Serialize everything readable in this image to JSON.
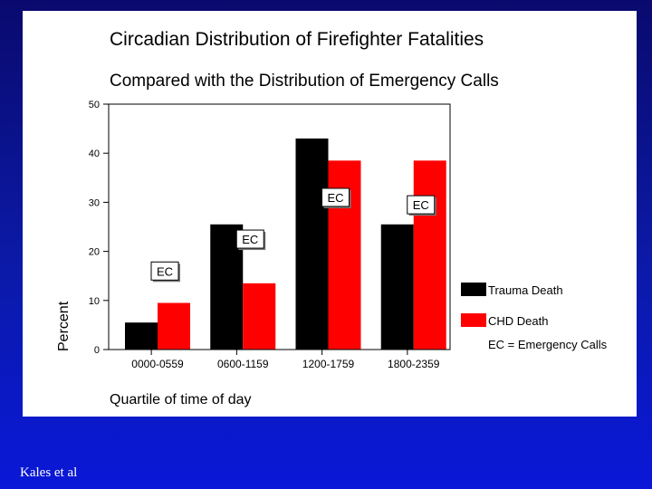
{
  "slide": {
    "credit": "Kales et al",
    "colors": {
      "background": "#0b1aa8",
      "panel": "#ffffff"
    }
  },
  "chart_data": {
    "type": "bar",
    "title": "Circadian Distribution of Firefighter Fatalities",
    "subtitle": "Compared with the Distribution of Emergency Calls",
    "xlabel": "Quartile of time of day",
    "ylabel": "Percent",
    "ylim": [
      0,
      50
    ],
    "yticks": [
      "0",
      "10",
      "20",
      "30",
      "40",
      "50"
    ],
    "categories": [
      "0000-0559",
      "0600-1159",
      "1200-1759",
      "1800-2359"
    ],
    "series": [
      {
        "name": "Trauma Death",
        "color": "#000000",
        "values": [
          5.5,
          25.5,
          43,
          25.5
        ]
      },
      {
        "name": "CHD Death",
        "color": "#ff0000",
        "values": [
          9.5,
          13.5,
          38.5,
          38.5
        ]
      }
    ],
    "ec_label": "EC",
    "ec_values": [
      16,
      22.5,
      31,
      29.5
    ],
    "legend_note": "EC = Emergency Calls",
    "legend_position": "right"
  }
}
